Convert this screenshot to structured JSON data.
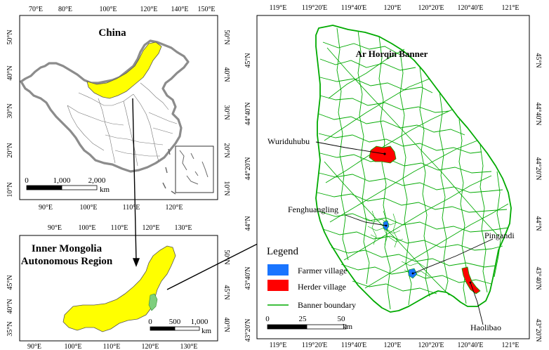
{
  "china": {
    "title": "China",
    "top_ticks": [
      "70°E",
      "80°E",
      "100°E",
      "120°E",
      "140°E",
      "150°E"
    ],
    "bottom_ticks": [
      "90°E",
      "100°E",
      "110°E",
      "120°E"
    ],
    "left_ticks": [
      "50°N",
      "40°N",
      "30°N",
      "20°N",
      "10°N"
    ],
    "right_ticks": [
      "50°N",
      "40°N",
      "30°N",
      "20°N",
      "10°N"
    ],
    "scale": {
      "labels": [
        "0",
        "1,000",
        "2,000"
      ],
      "unit": "km"
    }
  },
  "inner_mongolia": {
    "title_line1": "Inner Mongolia",
    "title_line2": "Autonomous Region",
    "top_ticks": [
      "90°E",
      "100°E",
      "110°E",
      "120°E",
      "130°E"
    ],
    "bottom_ticks": [
      "90°E",
      "100°E",
      "110°E",
      "120°E",
      "130°E"
    ],
    "left_ticks": [
      "45°N",
      "40°N",
      "35°N"
    ],
    "right_ticks": [
      "50°N",
      "45°N",
      "40°N"
    ],
    "scale": {
      "labels": [
        "0",
        "500",
        "1,000"
      ],
      "unit": "km"
    }
  },
  "banner": {
    "title": "Ar Horqin Banner",
    "top_ticks": [
      "119°E",
      "119°20'E",
      "119°40'E",
      "120°E",
      "120°20'E",
      "120°40'E",
      "121°E"
    ],
    "bottom_ticks": [
      "119°E",
      "119°20'E",
      "119°40'E",
      "120°E",
      "120°20'E",
      "120°40'E",
      "121°E"
    ],
    "left_ticks": [
      "45°N",
      "44°40'N",
      "44°20'N",
      "44°N",
      "43°40'N",
      "43°20'N"
    ],
    "right_ticks": [
      "45°N",
      "44°40'N",
      "44°20'N",
      "44°N",
      "43°40'N",
      "43°20'N"
    ],
    "villages": {
      "wuriduhubu": "Wuriduhubu",
      "fenghuangling": "Fenghuangling",
      "pingandi": "Pingandi",
      "haolibao": "Haolibao"
    },
    "legend": {
      "title": "Legend",
      "farmer": "Farmer village",
      "herder": "Herder village",
      "boundary": "Banner boundary"
    },
    "scale": {
      "labels": [
        "0",
        "25",
        "50"
      ],
      "unit": "km"
    }
  },
  "colors": {
    "province": "#ffff00",
    "banner_area": "#7ecf7e",
    "boundary": "#00aa00",
    "farmer": "#1a75ff",
    "herder": "#ff0000",
    "country_border": "#8c8c8c"
  }
}
